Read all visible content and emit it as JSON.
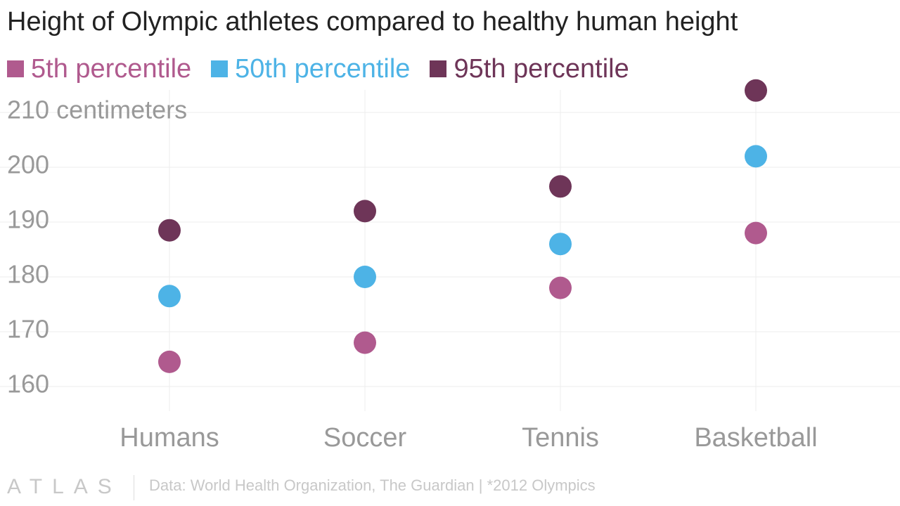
{
  "chart_data": {
    "type": "scatter",
    "title": "Height of Olympic athletes compared to healthy human height",
    "ylabel": "centimeters",
    "categories": [
      "Humans",
      "Soccer",
      "Tennis",
      "Basketball"
    ],
    "series": [
      {
        "name": "5th percentile",
        "color": "#b05a8e",
        "values": [
          164.5,
          168,
          178,
          188
        ]
      },
      {
        "name": "50th percentile",
        "color": "#4db3e6",
        "values": [
          176.5,
          180,
          186,
          202
        ]
      },
      {
        "name": "95th percentile",
        "color": "#6e3558",
        "values": [
          188.5,
          192,
          196.5,
          214
        ]
      }
    ],
    "y_ticks": [
      160,
      170,
      180,
      190,
      200,
      210
    ],
    "y_tick_labels": [
      "160",
      "170",
      "180",
      "190",
      "200",
      "210 centimeters"
    ],
    "ylim": [
      160,
      210
    ],
    "grid": true,
    "legend_position": "top-left"
  },
  "footer": {
    "logo": "ATLAS",
    "source": "Data: World Health Organization, The Guardian | *2012 Olympics"
  },
  "colors": {
    "title": "#222222",
    "axis_text": "#999999",
    "gridline": "#ececec"
  }
}
